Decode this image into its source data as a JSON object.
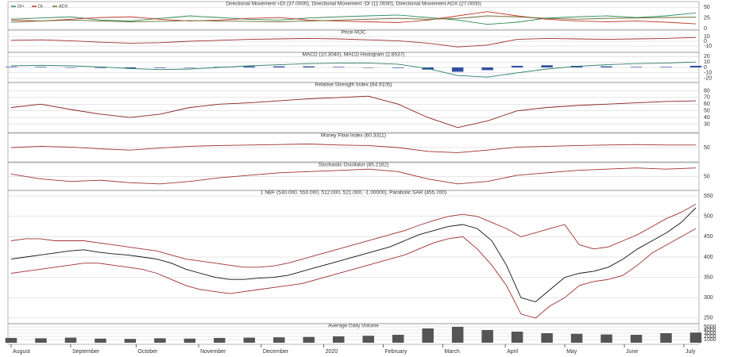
{
  "chart_data": [
    {
      "type": "line",
      "title": "Directional Movement +DI (37.0000), Directional Movement -DI (11.0000), Directional Movement ADX (27.0000)",
      "ylim": [
        0,
        60
      ],
      "yticks": [
        0,
        25,
        50
      ],
      "legend": "top-left",
      "series": [
        {
          "name": "DI+",
          "color": "#2e8b57",
          "values": [
            22,
            25,
            28,
            20,
            18,
            24,
            30,
            26,
            22,
            20,
            25,
            28,
            30,
            32,
            26,
            20,
            10,
            15,
            25,
            28,
            30,
            26,
            30,
            37
          ]
        },
        {
          "name": "DI-",
          "color": "#c0392b",
          "values": [
            20,
            18,
            22,
            26,
            28,
            22,
            18,
            20,
            24,
            26,
            20,
            18,
            16,
            14,
            20,
            30,
            40,
            30,
            22,
            18,
            16,
            18,
            15,
            11
          ]
        },
        {
          "name": "ADX",
          "color": "#6b6b2f",
          "values": [
            15,
            18,
            20,
            18,
            16,
            17,
            19,
            18,
            17,
            16,
            18,
            20,
            22,
            24,
            22,
            24,
            30,
            28,
            24,
            22,
            24,
            25,
            26,
            27
          ]
        }
      ]
    },
    {
      "type": "line",
      "title": "Price ROC",
      "ylim": [
        -20,
        20
      ],
      "yticks": [
        -10,
        0,
        10
      ],
      "series": [
        {
          "color": "#a03030",
          "values": [
            2,
            3,
            1,
            -2,
            -4,
            -3,
            0,
            2,
            4,
            5,
            6,
            5,
            3,
            1,
            -4,
            -12,
            -8,
            4,
            6,
            5,
            4,
            5,
            6,
            8
          ]
        }
      ]
    },
    {
      "type": "line",
      "title": "MACD (10.3040), MACD Histogram (2.8537)",
      "ylim": [
        -25,
        25
      ],
      "yticks": [
        -20,
        -10,
        0,
        10,
        20
      ],
      "series": [
        {
          "color": "#3050a0",
          "kind": "bar",
          "values": [
            1,
            1,
            0,
            -1,
            -2,
            -1,
            0,
            1,
            2,
            2,
            2,
            1,
            0,
            -1,
            -4,
            -8,
            -5,
            3,
            4,
            3,
            2,
            1,
            1,
            3
          ]
        },
        {
          "color": "#2e7d6b",
          "values": [
            3,
            4,
            3,
            1,
            -2,
            -4,
            -3,
            0,
            3,
            5,
            7,
            8,
            8,
            6,
            -2,
            -15,
            -18,
            -10,
            -3,
            2,
            5,
            7,
            8,
            10
          ]
        }
      ]
    },
    {
      "type": "line",
      "title": "Relative Strength Index (64.9105)",
      "ylim": [
        20,
        90
      ],
      "yticks": [
        30,
        40,
        50,
        60,
        70,
        80
      ],
      "series": [
        {
          "color": "#8b2020",
          "values": [
            55,
            60,
            52,
            45,
            40,
            45,
            55,
            60,
            62,
            65,
            68,
            70,
            72,
            60,
            40,
            25,
            35,
            50,
            55,
            58,
            60,
            62,
            64,
            65
          ]
        }
      ]
    },
    {
      "type": "line",
      "title": "Money Flow Index (60.3311)",
      "ylim": [
        0,
        100
      ],
      "yticks": [
        50
      ],
      "series": [
        {
          "color": "#a03030",
          "values": [
            50,
            55,
            52,
            45,
            40,
            48,
            55,
            58,
            60,
            62,
            64,
            60,
            58,
            50,
            35,
            30,
            40,
            52,
            55,
            58,
            60,
            62,
            60,
            60
          ]
        }
      ]
    },
    {
      "type": "line",
      "title": "Stochastic Oscillator (85.2162)",
      "ylim": [
        0,
        100
      ],
      "yticks": [
        50
      ],
      "series": [
        {
          "color": "#a03030",
          "values": [
            60,
            40,
            30,
            35,
            25,
            20,
            30,
            45,
            55,
            65,
            70,
            75,
            80,
            70,
            40,
            20,
            30,
            55,
            65,
            75,
            80,
            85,
            80,
            85
          ]
        }
      ]
    },
    {
      "type": "line",
      "title": "1 NBF (530.000, 550.000, 512.000, 521.000, -1.00000), Parabolic SAR (455.700)",
      "ylim": [
        240,
        560
      ],
      "yticks": [
        250,
        300,
        350,
        400,
        450,
        500,
        550
      ],
      "series": [
        {
          "color": "#111111",
          "values": [
            395,
            400,
            405,
            410,
            415,
            418,
            412,
            408,
            405,
            400,
            395,
            385,
            370,
            360,
            350,
            345,
            345,
            348,
            350,
            355,
            365,
            375,
            385,
            395,
            405,
            415,
            425,
            440,
            455,
            465,
            475,
            480,
            470,
            440,
            380,
            300,
            290,
            320,
            350,
            360,
            365,
            375,
            395,
            420,
            440,
            460,
            485,
            521
          ]
        },
        {
          "color": "#a03030",
          "values": [
            440,
            445,
            445,
            440,
            440,
            440,
            435,
            430,
            425,
            420,
            415,
            405,
            395,
            390,
            385,
            380,
            375,
            375,
            378,
            385,
            395,
            405,
            415,
            425,
            435,
            445,
            455,
            465,
            478,
            490,
            500,
            505,
            500,
            485,
            470,
            450,
            460,
            470,
            480,
            430,
            420,
            425,
            440,
            455,
            475,
            495,
            510,
            530
          ]
        },
        {
          "color": "#a03030",
          "values": [
            360,
            365,
            370,
            375,
            380,
            385,
            385,
            380,
            375,
            370,
            360,
            345,
            330,
            320,
            315,
            310,
            315,
            320,
            325,
            330,
            335,
            345,
            355,
            365,
            375,
            385,
            395,
            405,
            420,
            435,
            445,
            450,
            420,
            380,
            330,
            260,
            250,
            280,
            300,
            330,
            340,
            345,
            355,
            380,
            410,
            430,
            450,
            470
          ]
        }
      ]
    },
    {
      "type": "bar",
      "title": "Average Daily Volume",
      "ylim": [
        0,
        5500
      ],
      "yticks": [
        1000,
        2000,
        3000,
        4000,
        5000
      ],
      "xticks": [
        {
          "value": 0,
          "label": "August"
        },
        {
          "value": 2,
          "label": "September"
        },
        {
          "value": 4.2,
          "label": "October"
        },
        {
          "value": 6.3,
          "label": "November"
        },
        {
          "value": 8.4,
          "label": "December"
        },
        {
          "value": 10.5,
          "label": "2020"
        },
        {
          "value": 12.5,
          "label": "February"
        },
        {
          "value": 14.5,
          "label": "March"
        },
        {
          "value": 16.6,
          "label": "April"
        },
        {
          "value": 18.6,
          "label": "May"
        },
        {
          "value": 20.6,
          "label": "June"
        },
        {
          "value": 22.6,
          "label": "July"
        }
      ],
      "series": [
        {
          "color": "#555555",
          "values": [
            1500,
            1400,
            1600,
            1300,
            1200,
            1400,
            1300,
            1500,
            1600,
            1700,
            1800,
            2000,
            2200,
            2500,
            4500,
            5000,
            4000,
            3500,
            3000,
            2800,
            2600,
            2500,
            3000,
            3200
          ]
        }
      ]
    }
  ]
}
